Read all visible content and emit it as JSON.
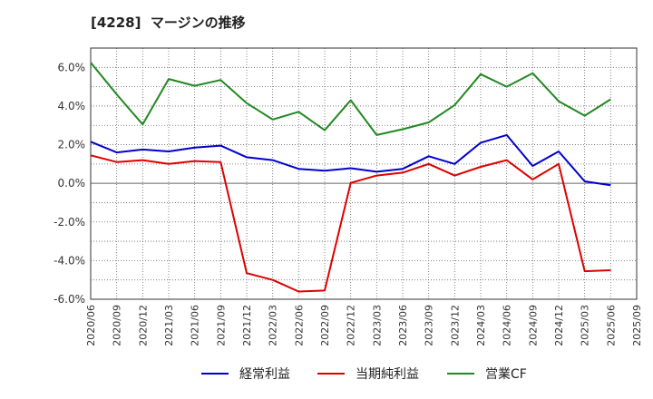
{
  "chart_data": {
    "type": "line",
    "title": "[4228]  マージンの推移",
    "x": [
      "2020/06",
      "2020/09",
      "2020/12",
      "2021/03",
      "2021/06",
      "2021/09",
      "2021/12",
      "2022/03",
      "2022/06",
      "2022/09",
      "2022/12",
      "2023/03",
      "2023/06",
      "2023/09",
      "2023/12",
      "2024/03",
      "2024/06",
      "2024/09",
      "2024/12",
      "2025/03",
      "2025/06",
      "2025/09"
    ],
    "ylim": [
      -6.0,
      7.0
    ],
    "yticks": [
      6.0,
      4.0,
      2.0,
      0.0,
      -2.0,
      -4.0,
      -6.0
    ],
    "ytick_labels": [
      "6.0%",
      "4.0%",
      "2.0%",
      "0.0%",
      "-2.0%",
      "-4.0%",
      "-6.0%"
    ],
    "grid": true,
    "legend_position": "bottom",
    "series": [
      {
        "name": "経常利益",
        "color": "#0000cc",
        "values": [
          2.15,
          1.6,
          1.75,
          1.65,
          1.85,
          1.95,
          1.35,
          1.2,
          0.75,
          0.65,
          0.78,
          0.6,
          0.75,
          1.4,
          1.0,
          2.1,
          2.5,
          0.9,
          1.65,
          0.1,
          -0.1,
          null
        ]
      },
      {
        "name": "当期純利益",
        "color": "#dd0000",
        "values": [
          1.45,
          1.1,
          1.2,
          1.0,
          1.15,
          1.1,
          -4.65,
          -5.0,
          -5.6,
          -5.55,
          0.02,
          0.4,
          0.55,
          1.0,
          0.4,
          0.85,
          1.2,
          0.2,
          1.0,
          -4.55,
          -4.5,
          null
        ]
      },
      {
        "name": "営業CF",
        "color": "#228822",
        "values": [
          6.25,
          4.6,
          3.05,
          5.4,
          5.05,
          5.35,
          4.15,
          3.3,
          3.7,
          2.75,
          4.3,
          2.5,
          2.8,
          3.15,
          4.05,
          5.65,
          5.0,
          5.7,
          4.25,
          3.5,
          4.35,
          null
        ]
      }
    ]
  }
}
